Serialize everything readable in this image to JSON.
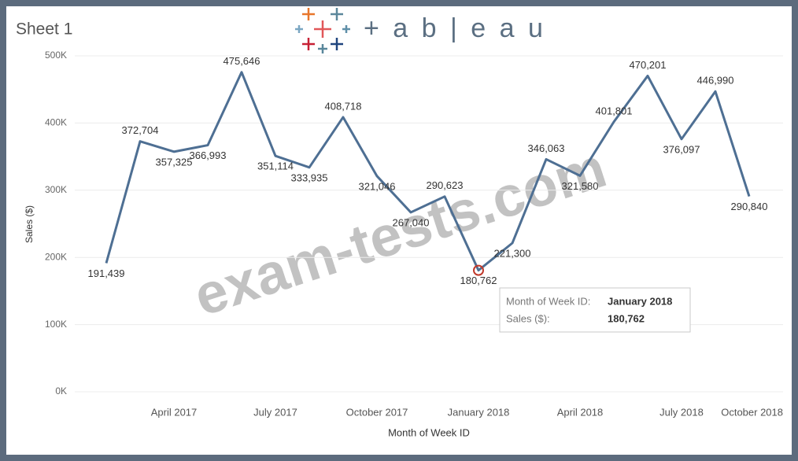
{
  "sheet_title": "Sheet 1",
  "logo": "+ a b | e a u",
  "watermark": "exam-tests.com",
  "chart_data": {
    "type": "line",
    "x_label": "Month of Week ID",
    "y_label": "Sales ($)",
    "categories": [
      null,
      null,
      "April 2017",
      null,
      null,
      "July 2017",
      null,
      null,
      "October 2017",
      null,
      null,
      "January 2018",
      null,
      null,
      "April 2018",
      null,
      null,
      "July 2018",
      null,
      null,
      "October 2018"
    ],
    "values": [
      191439,
      372704,
      357325,
      366993,
      475646,
      351114,
      333935,
      408718,
      321046,
      267040,
      290623,
      180762,
      221300,
      346063,
      321580,
      401801,
      470201,
      376097,
      446990,
      290840,
      null
    ],
    "value_labels": [
      "191,439",
      "372,704",
      "357,325",
      "366,993",
      "475,646",
      "351,114",
      "333,935",
      "408,718",
      "321,046",
      "267,040",
      "290,623",
      "180,762",
      "221,300",
      "346,063",
      "321,580",
      "401,801",
      "470,201",
      "376,097",
      "446,990",
      "290,840",
      null
    ],
    "color": "#4e6f93",
    "ylim": [
      0,
      500000
    ],
    "yticks": [
      {
        "value": 0,
        "label": "0K"
      },
      {
        "value": 100000,
        "label": "100K"
      },
      {
        "value": 200000,
        "label": "200K"
      },
      {
        "value": 300000,
        "label": "300K"
      },
      {
        "value": 400000,
        "label": "400K"
      },
      {
        "value": 500000,
        "label": "500K"
      }
    ],
    "grid": true,
    "tooltip": {
      "field_label": "Month of Week ID:",
      "field_value": "January 2018",
      "measure_label": "Sales ($):",
      "measure_value": "180,762"
    }
  }
}
